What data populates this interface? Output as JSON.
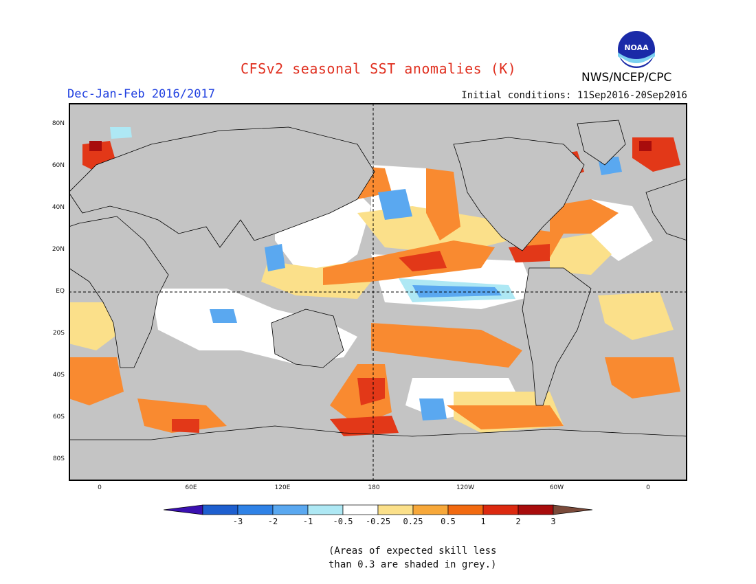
{
  "header": {
    "title": "CFSv2 seasonal SST anomalies (K)",
    "season": "Dec-Jan-Feb 2016/2017",
    "initial_conditions": "Initial conditions: 11Sep2016-20Sep2016",
    "agency": "NWS/NCEP/CPC",
    "logo_text": "NOAA"
  },
  "map": {
    "lat_labels": [
      "80N",
      "60N",
      "40N",
      "20N",
      "EQ",
      "20S",
      "40S",
      "60S",
      "80S"
    ],
    "lon_labels": [
      "0",
      "60E",
      "120E",
      "180",
      "120W",
      "60W",
      "0"
    ],
    "land_color": "#c8c8c8",
    "grey_skill_color": "#c0c0c0"
  },
  "colorbar": {
    "labels": [
      "-3",
      "-2",
      "-1",
      "-0.5",
      "-0.25",
      "0.25",
      "0.5",
      "1",
      "2",
      "3"
    ],
    "colors": [
      "#3a10b0",
      "#1e5fcf",
      "#2f82e6",
      "#5aa8f0",
      "#aee8f4",
      "#ffffff",
      "#fbe08a",
      "#f7a83a",
      "#f26a10",
      "#dc2a10",
      "#a80c0c",
      "#7a4a3a"
    ]
  },
  "note": {
    "line1": "(Areas of expected skill less",
    "line2": "than 0.3 are shaded in grey.)"
  }
}
